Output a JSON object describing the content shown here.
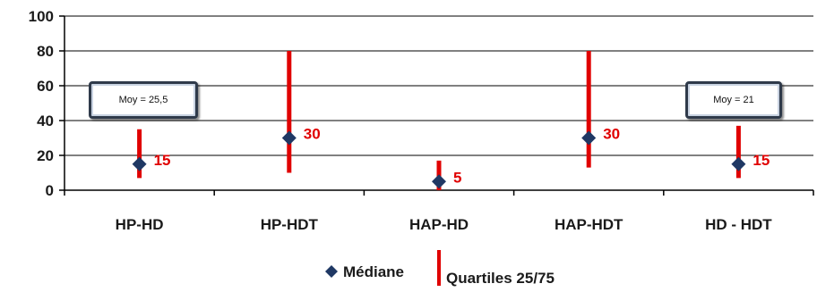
{
  "chart_data": {
    "type": "scatter",
    "categories": [
      "HP-HD",
      "HP-HDT",
      "HAP-HD",
      "HAP-HDT",
      "HD - HDT"
    ],
    "series": [
      {
        "name": "Médiane",
        "kind": "point",
        "values": [
          15,
          30,
          5,
          30,
          15
        ],
        "color": "#1f3864"
      },
      {
        "name": "Quartiles 25/75",
        "kind": "range",
        "low": [
          7,
          10,
          0,
          13,
          7
        ],
        "high": [
          35,
          80,
          17,
          80,
          37
        ],
        "color": "#e00000"
      }
    ],
    "data_labels": [
      "15",
      "30",
      "5",
      "30",
      "15"
    ],
    "yticks": [
      "0",
      "20",
      "40",
      "60",
      "80",
      "100"
    ],
    "ylim": [
      0,
      100
    ],
    "grid": true,
    "legend_position": "bottom",
    "annotations": [
      {
        "category": "HP-HD",
        "text": "Moy = 25,5"
      },
      {
        "category": "HD - HDT",
        "text": "Moy = 21"
      }
    ]
  },
  "legend": {
    "median_label": "Médiane",
    "quartiles_label": "Quartiles 25/75"
  }
}
